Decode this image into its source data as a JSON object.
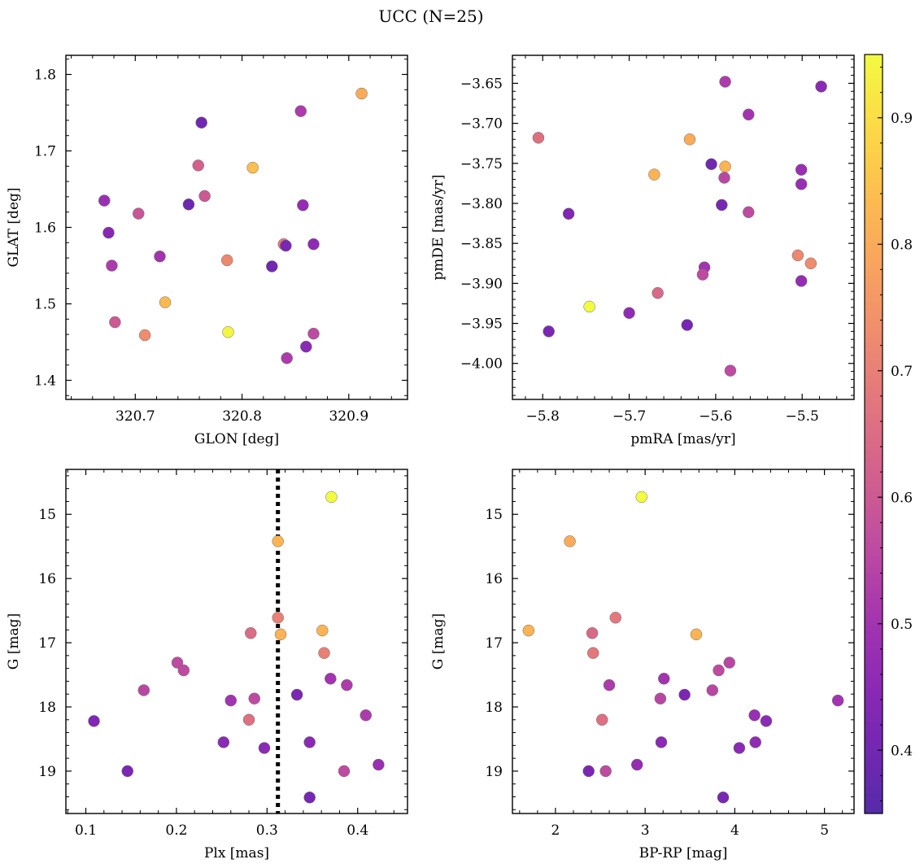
{
  "figure": {
    "title": "UCC (N=25)"
  },
  "colorbar": {
    "ticks": [
      0.4,
      0.5,
      0.6,
      0.7,
      0.8,
      0.9
    ],
    "range": [
      0.35,
      0.95
    ],
    "colormap": "plasma"
  },
  "chart_data": [
    {
      "type": "scatter",
      "xlabel": "GLON [deg]",
      "ylabel": "GLAT [deg]",
      "xlim": [
        320.635,
        320.955
      ],
      "ylim": [
        1.375,
        1.825
      ],
      "xticks": [
        320.7,
        320.8,
        320.9
      ],
      "yticks": [
        1.4,
        1.5,
        1.6,
        1.7,
        1.8
      ],
      "xtick_labels": [
        "320.7",
        "320.8",
        "320.9"
      ],
      "ytick_labels": [
        "1.4",
        "1.5",
        "1.6",
        "1.7",
        "1.8"
      ],
      "grid": false,
      "points": [
        {
          "x": 320.912,
          "y": 1.775,
          "c": 0.8
        },
        {
          "x": 320.855,
          "y": 1.752,
          "c": 0.52
        },
        {
          "x": 320.762,
          "y": 1.737,
          "c": 0.4
        },
        {
          "x": 320.759,
          "y": 1.681,
          "c": 0.62
        },
        {
          "x": 320.81,
          "y": 1.678,
          "c": 0.84
        },
        {
          "x": 320.765,
          "y": 1.641,
          "c": 0.6
        },
        {
          "x": 320.671,
          "y": 1.635,
          "c": 0.48
        },
        {
          "x": 320.75,
          "y": 1.63,
          "c": 0.39
        },
        {
          "x": 320.857,
          "y": 1.629,
          "c": 0.47
        },
        {
          "x": 320.703,
          "y": 1.618,
          "c": 0.59
        },
        {
          "x": 320.675,
          "y": 1.593,
          "c": 0.44
        },
        {
          "x": 320.839,
          "y": 1.578,
          "c": 0.69
        },
        {
          "x": 320.841,
          "y": 1.576,
          "c": 0.42
        },
        {
          "x": 320.867,
          "y": 1.578,
          "c": 0.46
        },
        {
          "x": 320.723,
          "y": 1.562,
          "c": 0.5
        },
        {
          "x": 320.786,
          "y": 1.557,
          "c": 0.72
        },
        {
          "x": 320.828,
          "y": 1.549,
          "c": 0.4
        },
        {
          "x": 320.678,
          "y": 1.55,
          "c": 0.52
        },
        {
          "x": 320.728,
          "y": 1.502,
          "c": 0.83
        },
        {
          "x": 320.681,
          "y": 1.476,
          "c": 0.6
        },
        {
          "x": 320.787,
          "y": 1.463,
          "c": 0.94
        },
        {
          "x": 320.709,
          "y": 1.459,
          "c": 0.73
        },
        {
          "x": 320.867,
          "y": 1.461,
          "c": 0.56
        },
        {
          "x": 320.86,
          "y": 1.444,
          "c": 0.45
        },
        {
          "x": 320.842,
          "y": 1.429,
          "c": 0.52
        }
      ]
    },
    {
      "type": "scatter",
      "xlabel": "pmRA [mas/yr]",
      "ylabel": "pmDE [mas/yr]",
      "xlim": [
        -5.835,
        -5.44
      ],
      "ylim": [
        -4.045,
        -3.615
      ],
      "xticks": [
        -5.8,
        -5.7,
        -5.6,
        -5.5
      ],
      "yticks": [
        -4.0,
        -3.95,
        -3.9,
        -3.85,
        -3.8,
        -3.75,
        -3.7,
        -3.65
      ],
      "xtick_labels": [
        "−5.8",
        "−5.7",
        "−5.6",
        "−5.5"
      ],
      "ytick_labels": [
        "−4.00",
        "−3.95",
        "−3.90",
        "−3.85",
        "−3.80",
        "−3.75",
        "−3.70",
        "−3.65"
      ],
      "grid": false,
      "points": [
        {
          "x": -5.589,
          "y": -3.648,
          "c": 0.52
        },
        {
          "x": -5.478,
          "y": -3.654,
          "c": 0.45
        },
        {
          "x": -5.562,
          "y": -3.689,
          "c": 0.5
        },
        {
          "x": -5.805,
          "y": -3.718,
          "c": 0.66
        },
        {
          "x": -5.63,
          "y": -3.72,
          "c": 0.8
        },
        {
          "x": -5.605,
          "y": -3.751,
          "c": 0.4
        },
        {
          "x": -5.589,
          "y": -3.754,
          "c": 0.82
        },
        {
          "x": -5.501,
          "y": -3.758,
          "c": 0.48
        },
        {
          "x": -5.671,
          "y": -3.764,
          "c": 0.82
        },
        {
          "x": -5.59,
          "y": -3.768,
          "c": 0.55
        },
        {
          "x": -5.501,
          "y": -3.776,
          "c": 0.48
        },
        {
          "x": -5.593,
          "y": -3.802,
          "c": 0.41
        },
        {
          "x": -5.77,
          "y": -3.813,
          "c": 0.43
        },
        {
          "x": -5.562,
          "y": -3.811,
          "c": 0.56
        },
        {
          "x": -5.505,
          "y": -3.865,
          "c": 0.72
        },
        {
          "x": -5.49,
          "y": -3.875,
          "c": 0.73
        },
        {
          "x": -5.613,
          "y": -3.88,
          "c": 0.5
        },
        {
          "x": -5.615,
          "y": -3.889,
          "c": 0.56
        },
        {
          "x": -5.501,
          "y": -3.897,
          "c": 0.47
        },
        {
          "x": -5.667,
          "y": -3.912,
          "c": 0.64
        },
        {
          "x": -5.746,
          "y": -3.929,
          "c": 0.95
        },
        {
          "x": -5.7,
          "y": -3.937,
          "c": 0.46
        },
        {
          "x": -5.633,
          "y": -3.952,
          "c": 0.41
        },
        {
          "x": -5.793,
          "y": -3.96,
          "c": 0.42
        },
        {
          "x": -5.583,
          "y": -4.009,
          "c": 0.56
        }
      ]
    },
    {
      "type": "scatter",
      "xlabel": "Plx [mas]",
      "ylabel": "G [mag]",
      "xlim": [
        0.078,
        0.455
      ],
      "ylim": [
        19.66,
        14.3
      ],
      "y_inverted": true,
      "xticks": [
        0.1,
        0.2,
        0.3,
        0.4
      ],
      "yticks": [
        15,
        16,
        17,
        18,
        19
      ],
      "xtick_labels": [
        "0.1",
        "0.2",
        "0.3",
        "0.4"
      ],
      "ytick_labels": [
        "15",
        "16",
        "17",
        "18",
        "19"
      ],
      "grid": false,
      "vline": {
        "x": 0.312,
        "style": "dotted",
        "color": "#000000"
      },
      "points": [
        {
          "x": 0.371,
          "y": 14.73,
          "c": 0.95
        },
        {
          "x": 0.312,
          "y": 15.42,
          "c": 0.82
        },
        {
          "x": 0.312,
          "y": 16.61,
          "c": 0.7
        },
        {
          "x": 0.282,
          "y": 16.85,
          "c": 0.65
        },
        {
          "x": 0.315,
          "y": 16.87,
          "c": 0.82
        },
        {
          "x": 0.361,
          "y": 16.81,
          "c": 0.82
        },
        {
          "x": 0.363,
          "y": 17.16,
          "c": 0.7
        },
        {
          "x": 0.201,
          "y": 17.31,
          "c": 0.56
        },
        {
          "x": 0.208,
          "y": 17.43,
          "c": 0.56
        },
        {
          "x": 0.37,
          "y": 17.56,
          "c": 0.5
        },
        {
          "x": 0.388,
          "y": 17.66,
          "c": 0.52
        },
        {
          "x": 0.164,
          "y": 17.74,
          "c": 0.55
        },
        {
          "x": 0.333,
          "y": 17.81,
          "c": 0.42
        },
        {
          "x": 0.26,
          "y": 17.9,
          "c": 0.5
        },
        {
          "x": 0.286,
          "y": 17.87,
          "c": 0.56
        },
        {
          "x": 0.409,
          "y": 18.13,
          "c": 0.52
        },
        {
          "x": 0.109,
          "y": 18.22,
          "c": 0.43
        },
        {
          "x": 0.28,
          "y": 18.2,
          "c": 0.66
        },
        {
          "x": 0.252,
          "y": 18.55,
          "c": 0.45
        },
        {
          "x": 0.347,
          "y": 18.55,
          "c": 0.45
        },
        {
          "x": 0.297,
          "y": 18.64,
          "c": 0.45
        },
        {
          "x": 0.423,
          "y": 18.9,
          "c": 0.48
        },
        {
          "x": 0.146,
          "y": 19.0,
          "c": 0.42
        },
        {
          "x": 0.385,
          "y": 19.0,
          "c": 0.56
        },
        {
          "x": 0.347,
          "y": 19.41,
          "c": 0.41
        }
      ]
    },
    {
      "type": "scatter",
      "xlabel": "BP-RP [mag]",
      "ylabel": "G [mag]",
      "xlim": [
        1.52,
        5.33
      ],
      "ylim": [
        19.66,
        14.3
      ],
      "y_inverted": true,
      "xticks": [
        2,
        3,
        4,
        5
      ],
      "yticks": [
        15,
        16,
        17,
        18,
        19
      ],
      "xtick_labels": [
        "2",
        "3",
        "4",
        "5"
      ],
      "ytick_labels": [
        "15",
        "16",
        "17",
        "18",
        "19"
      ],
      "grid": false,
      "points": [
        {
          "x": 2.96,
          "y": 14.73,
          "c": 0.95
        },
        {
          "x": 2.16,
          "y": 15.42,
          "c": 0.8
        },
        {
          "x": 2.67,
          "y": 16.61,
          "c": 0.68
        },
        {
          "x": 1.7,
          "y": 16.81,
          "c": 0.82
        },
        {
          "x": 2.41,
          "y": 16.85,
          "c": 0.64
        },
        {
          "x": 3.57,
          "y": 16.87,
          "c": 0.82
        },
        {
          "x": 2.42,
          "y": 17.16,
          "c": 0.68
        },
        {
          "x": 3.94,
          "y": 17.31,
          "c": 0.55
        },
        {
          "x": 3.82,
          "y": 17.43,
          "c": 0.56
        },
        {
          "x": 3.21,
          "y": 17.56,
          "c": 0.5
        },
        {
          "x": 2.6,
          "y": 17.66,
          "c": 0.52
        },
        {
          "x": 3.75,
          "y": 17.74,
          "c": 0.55
        },
        {
          "x": 3.44,
          "y": 17.81,
          "c": 0.42
        },
        {
          "x": 3.17,
          "y": 17.87,
          "c": 0.55
        },
        {
          "x": 5.15,
          "y": 17.9,
          "c": 0.5
        },
        {
          "x": 4.22,
          "y": 18.13,
          "c": 0.48
        },
        {
          "x": 4.35,
          "y": 18.22,
          "c": 0.45
        },
        {
          "x": 2.52,
          "y": 18.2,
          "c": 0.66
        },
        {
          "x": 3.18,
          "y": 18.55,
          "c": 0.45
        },
        {
          "x": 4.23,
          "y": 18.55,
          "c": 0.46
        },
        {
          "x": 4.05,
          "y": 18.64,
          "c": 0.45
        },
        {
          "x": 2.91,
          "y": 18.9,
          "c": 0.47
        },
        {
          "x": 2.37,
          "y": 19.0,
          "c": 0.42
        },
        {
          "x": 2.56,
          "y": 19.0,
          "c": 0.56
        },
        {
          "x": 3.87,
          "y": 19.41,
          "c": 0.41
        }
      ]
    }
  ]
}
